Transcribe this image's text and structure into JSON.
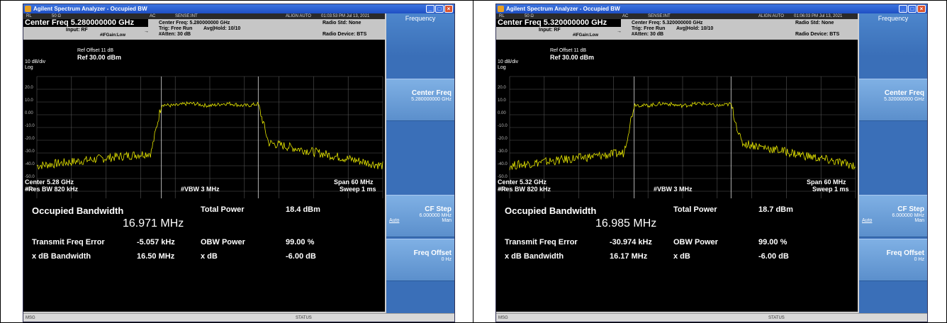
{
  "panels": [
    {
      "window_title": "Agilent Spectrum Analyzer - Occupied BW",
      "strip": {
        "rl": "RL",
        "impedance": "50 Ω",
        "ac": "AC",
        "sense": "SENSE:INT",
        "align": "ALIGN AUTO",
        "time": "01:03:53 PM Jul 13, 2021"
      },
      "center_freq_title": "Center Freq  5.280000000 GHz",
      "input": "Input: RF",
      "ifgain": "#IFGain:Low",
      "center_freq_info": "Center Freq: 5.280000000 GHz",
      "trig": "Trig: Free Run",
      "avg_hold": "Avg|Hold: 10/10",
      "atten": "#Atten: 30 dB",
      "radio_std": "Radio Std: None",
      "radio_device": "Radio Device: BTS",
      "ref_offset": "Ref Offset 11 dB",
      "scale": "10 dB/div",
      "ref_level": "Ref 30.00 dBm",
      "log_label": "Log",
      "y_ticks": [
        "20.0",
        "10.0",
        "0.00",
        "-10.0",
        "-20.0",
        "-30.0",
        "-40.0",
        "-50.0",
        "-60.0"
      ],
      "center_label": "Center  5.28 GHz",
      "res_bw": "#Res BW  820 kHz",
      "vbw": "#VBW  3 MHz",
      "span": "Span 60 MHz",
      "sweep": "Sweep  1 ms",
      "results": {
        "occupied_bandwidth_label": "Occupied Bandwidth",
        "occupied_bandwidth_value": "16.971 MHz",
        "total_power_label": "Total Power",
        "total_power_value": "18.4 dBm",
        "transmit_freq_error_label": "Transmit Freq Error",
        "transmit_freq_error_value": "-5.057 kHz",
        "obw_power_label": "OBW Power",
        "obw_power_value": "99.00 %",
        "xdb_bandwidth_label": "x dB Bandwidth",
        "xdb_bandwidth_value": "16.50 MHz",
        "xdb_label": "x dB",
        "xdb_value": "-6.00 dB"
      },
      "softkeys": {
        "menu_title": "Frequency",
        "center_freq": {
          "label": "Center Freq",
          "value": "5.280000000 GHz"
        },
        "cf_step": {
          "label": "CF Step",
          "value": "6.000000 MHz",
          "auto": "Auto",
          "man": "Man"
        },
        "freq_offset": {
          "label": "Freq Offset",
          "value": "0 Hz"
        }
      },
      "status_msg": "MSG",
      "status_label": "STATUS"
    },
    {
      "window_title": "Agilent Spectrum Analyzer - Occupied BW",
      "strip": {
        "rl": "RL",
        "impedance": "50 Ω",
        "ac": "AC",
        "sense": "SENSE:INT",
        "align": "ALIGN AUTO",
        "time": "01:06:03 PM Jul 13, 2021"
      },
      "center_freq_title": "Center Freq  5.320000000 GHz",
      "input": "Input: RF",
      "ifgain": "#IFGain:Low",
      "center_freq_info": "Center Freq: 5.320000000 GHz",
      "trig": "Trig: Free Run",
      "avg_hold": "Avg|Hold: 10/10",
      "atten": "#Atten: 30 dB",
      "radio_std": "Radio Std: None",
      "radio_device": "Radio Device: BTS",
      "ref_offset": "Ref Offset 11 dB",
      "scale": "10 dB/div",
      "ref_level": "Ref 30.00 dBm",
      "log_label": "Log",
      "y_ticks": [
        "20.0",
        "10.0",
        "0.00",
        "-10.0",
        "-20.0",
        "-30.0",
        "-40.0",
        "-50.0",
        "-60.0"
      ],
      "center_label": "Center  5.32 GHz",
      "res_bw": "#Res BW  820 kHz",
      "vbw": "#VBW  3 MHz",
      "span": "Span 60 MHz",
      "sweep": "Sweep  1 ms",
      "results": {
        "occupied_bandwidth_label": "Occupied Bandwidth",
        "occupied_bandwidth_value": "16.985 MHz",
        "total_power_label": "Total Power",
        "total_power_value": "18.7 dBm",
        "transmit_freq_error_label": "Transmit Freq Error",
        "transmit_freq_error_value": "-30.974 kHz",
        "obw_power_label": "OBW Power",
        "obw_power_value": "99.00 %",
        "xdb_bandwidth_label": "x dB Bandwidth",
        "xdb_bandwidth_value": "16.17 MHz",
        "xdb_label": "x dB",
        "xdb_value": "-6.00 dB"
      },
      "softkeys": {
        "menu_title": "Frequency",
        "center_freq": {
          "label": "Center Freq",
          "value": "5.320000000 GHz"
        },
        "cf_step": {
          "label": "CF Step",
          "value": "6.000000 MHz",
          "auto": "Auto",
          "man": "Man"
        },
        "freq_offset": {
          "label": "Freq Offset",
          "value": "0 Hz"
        }
      },
      "status_msg": "MSG",
      "status_label": "STATUS"
    }
  ],
  "colors": {
    "trace": "#e6e600",
    "softkey": "#5b8fcc",
    "screen": "#000000",
    "grid": "#555555"
  }
}
